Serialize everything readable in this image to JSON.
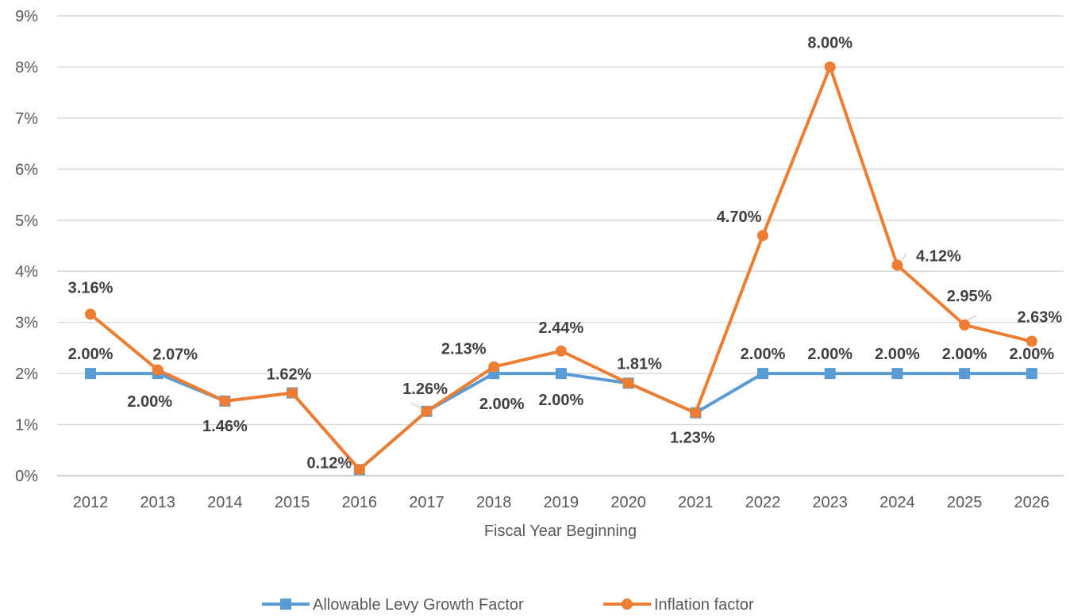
{
  "chart_data": {
    "type": "line",
    "title": "",
    "xlabel": "Fiscal Year Beginning",
    "ylabel": "",
    "ylim": [
      0,
      9
    ],
    "y_tick_labels": [
      "0%",
      "1%",
      "2%",
      "3%",
      "4%",
      "5%",
      "6%",
      "7%",
      "8%",
      "9%"
    ],
    "categories": [
      "2012",
      "2013",
      "2014",
      "2015",
      "2016",
      "2017",
      "2018",
      "2019",
      "2020",
      "2021",
      "2022",
      "2023",
      "2024",
      "2025",
      "2026"
    ],
    "grid": true,
    "legend_position": "bottom",
    "series": [
      {
        "name": "Allowable Levy Growth Factor",
        "color": "#5B9BD5",
        "marker": "square",
        "values": [
          2.0,
          2.0,
          1.46,
          1.62,
          0.12,
          1.26,
          2.0,
          2.0,
          1.81,
          1.23,
          2.0,
          2.0,
          2.0,
          2.0,
          2.0
        ],
        "data_labels": {
          "0": "2.00%",
          "1": "2.00%",
          "6": "2.00%",
          "7": "2.00%",
          "10": "2.00%",
          "11": "2.00%",
          "12": "2.00%",
          "13": "2.00%",
          "14": "2.00%"
        }
      },
      {
        "name": "Inflation factor",
        "color": "#ED7D31",
        "marker": "circle",
        "values": [
          3.16,
          2.07,
          1.46,
          1.62,
          0.12,
          1.26,
          2.13,
          2.44,
          1.81,
          1.23,
          4.7,
          8.0,
          4.12,
          2.95,
          2.63
        ],
        "data_labels": {
          "0": "3.16%",
          "1": "2.07%",
          "2": "1.46%",
          "3": "1.62%",
          "4": "0.12%",
          "5": "1.26%",
          "6": "2.13%",
          "7": "2.44%",
          "8": "1.81%",
          "9": "1.23%",
          "10": "4.70%",
          "11": "8.00%",
          "12": "4.12%",
          "13": "2.95%",
          "14": "2.63%"
        }
      }
    ]
  }
}
